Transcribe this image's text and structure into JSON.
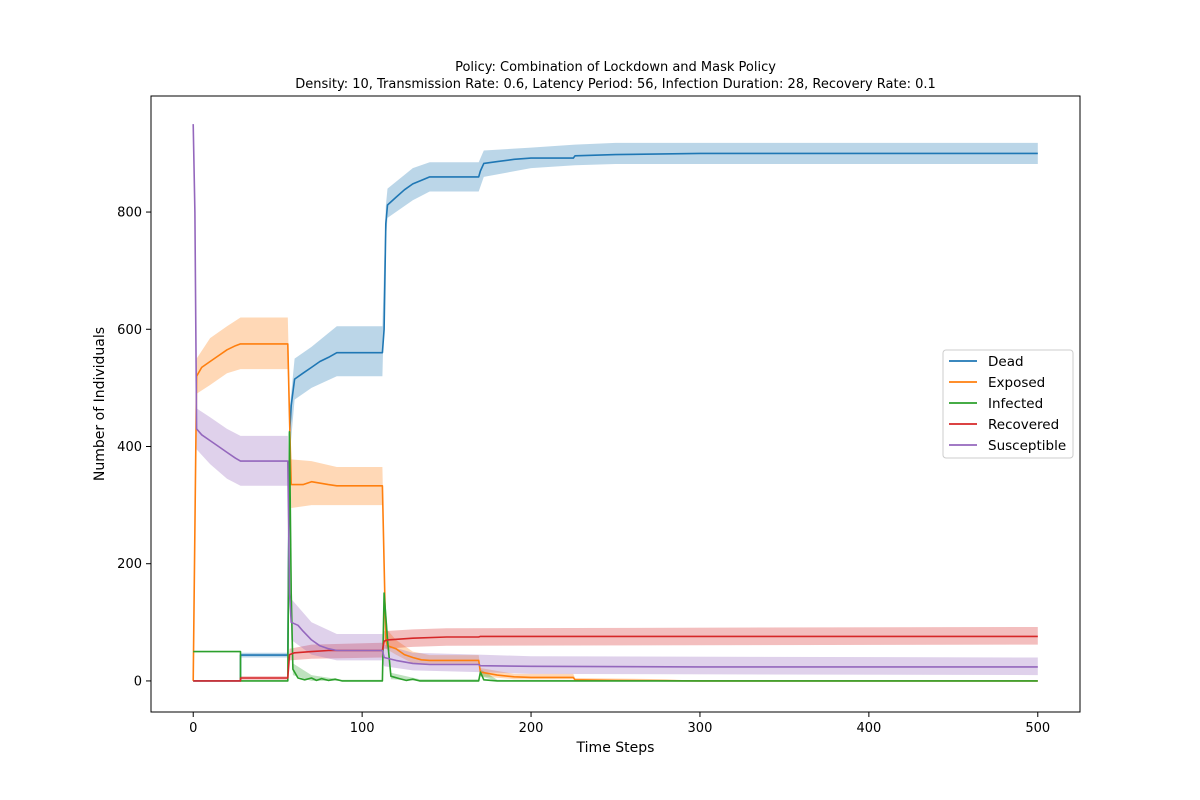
{
  "chart_data": {
    "type": "line",
    "title": "Policy: Combination of Lockdown and Mask Policy",
    "subtitle": "Density: 10, Transmission Rate: 0.6, Latency Period: 56, Infection Duration: 28, Recovery Rate: 0.1",
    "xlabel": "Time Steps",
    "ylabel": "Number of Individuals",
    "xlim": [
      -25,
      525
    ],
    "ylim": [
      -53,
      998
    ],
    "xticks": [
      0,
      100,
      200,
      300,
      400,
      500
    ],
    "yticks": [
      0,
      200,
      400,
      600,
      800
    ],
    "grid": false,
    "legend_position": "center-right",
    "series": [
      {
        "name": "Dead",
        "color": "#1f77b4",
        "points": [
          [
            0,
            0
          ],
          [
            28,
            0
          ],
          [
            28,
            44
          ],
          [
            56,
            44
          ],
          [
            56,
            44
          ],
          [
            57,
            420
          ],
          [
            58,
            470
          ],
          [
            60,
            515
          ],
          [
            65,
            525
          ],
          [
            70,
            535
          ],
          [
            75,
            545
          ],
          [
            80,
            552
          ],
          [
            85,
            560
          ],
          [
            112,
            560
          ],
          [
            113,
            600
          ],
          [
            114,
            780
          ],
          [
            115,
            812
          ],
          [
            120,
            825
          ],
          [
            125,
            838
          ],
          [
            130,
            848
          ],
          [
            135,
            854
          ],
          [
            140,
            860
          ],
          [
            169,
            860
          ],
          [
            170,
            870
          ],
          [
            172,
            883
          ],
          [
            180,
            886
          ],
          [
            190,
            890
          ],
          [
            200,
            892
          ],
          [
            225,
            892
          ],
          [
            226,
            896
          ],
          [
            250,
            898
          ],
          [
            300,
            900
          ],
          [
            500,
            900
          ]
        ],
        "band": [
          [
            0,
            0,
            0
          ],
          [
            28,
            0,
            0
          ],
          [
            28,
            40,
            48
          ],
          [
            56,
            40,
            48
          ],
          [
            57,
            380,
            460
          ],
          [
            60,
            480,
            550
          ],
          [
            70,
            500,
            570
          ],
          [
            85,
            520,
            605
          ],
          [
            112,
            520,
            605
          ],
          [
            114,
            750,
            810
          ],
          [
            115,
            790,
            840
          ],
          [
            130,
            820,
            875
          ],
          [
            140,
            835,
            885
          ],
          [
            169,
            835,
            885
          ],
          [
            172,
            860,
            905
          ],
          [
            200,
            875,
            910
          ],
          [
            226,
            880,
            915
          ],
          [
            250,
            882,
            918
          ],
          [
            500,
            882,
            918
          ]
        ]
      },
      {
        "name": "Exposed",
        "color": "#ff7f0e",
        "points": [
          [
            0,
            0
          ],
          [
            2,
            520
          ],
          [
            5,
            535
          ],
          [
            10,
            545
          ],
          [
            15,
            555
          ],
          [
            20,
            565
          ],
          [
            25,
            572
          ],
          [
            28,
            575
          ],
          [
            56,
            575
          ],
          [
            57,
            450
          ],
          [
            58,
            335
          ],
          [
            65,
            335
          ],
          [
            70,
            340
          ],
          [
            80,
            335
          ],
          [
            85,
            333
          ],
          [
            112,
            333
          ],
          [
            113,
            200
          ],
          [
            114,
            70
          ],
          [
            115,
            60
          ],
          [
            120,
            55
          ],
          [
            125,
            45
          ],
          [
            130,
            40
          ],
          [
            135,
            36
          ],
          [
            140,
            35
          ],
          [
            169,
            35
          ],
          [
            170,
            15
          ],
          [
            180,
            10
          ],
          [
            190,
            7
          ],
          [
            200,
            6
          ],
          [
            225,
            6
          ],
          [
            226,
            2
          ],
          [
            250,
            1
          ],
          [
            300,
            0
          ],
          [
            500,
            0
          ]
        ],
        "band": [
          [
            0,
            0,
            0
          ],
          [
            2,
            490,
            550
          ],
          [
            10,
            505,
            585
          ],
          [
            20,
            525,
            605
          ],
          [
            28,
            532,
            620
          ],
          [
            56,
            532,
            620
          ],
          [
            58,
            295,
            378
          ],
          [
            70,
            300,
            375
          ],
          [
            85,
            300,
            365
          ],
          [
            112,
            300,
            365
          ],
          [
            114,
            55,
            90
          ],
          [
            120,
            45,
            70
          ],
          [
            130,
            30,
            50
          ],
          [
            140,
            28,
            44
          ],
          [
            169,
            28,
            44
          ],
          [
            170,
            8,
            22
          ],
          [
            190,
            3,
            12
          ],
          [
            225,
            3,
            12
          ],
          [
            226,
            0,
            5
          ],
          [
            280,
            0,
            3
          ],
          [
            300,
            0,
            0
          ],
          [
            500,
            0,
            0
          ]
        ]
      },
      {
        "name": "Infected",
        "color": "#2ca02c",
        "points": [
          [
            0,
            50
          ],
          [
            28,
            50
          ],
          [
            28,
            0
          ],
          [
            56,
            0
          ],
          [
            57,
            425
          ],
          [
            58,
            150
          ],
          [
            59,
            20
          ],
          [
            62,
            5
          ],
          [
            66,
            2
          ],
          [
            70,
            5
          ],
          [
            73,
            1
          ],
          [
            76,
            4
          ],
          [
            80,
            1
          ],
          [
            84,
            3
          ],
          [
            88,
            0
          ],
          [
            112,
            0
          ],
          [
            113,
            150
          ],
          [
            115,
            70
          ],
          [
            117,
            8
          ],
          [
            122,
            4
          ],
          [
            126,
            1
          ],
          [
            130,
            3
          ],
          [
            134,
            0
          ],
          [
            169,
            0
          ],
          [
            170,
            15
          ],
          [
            172,
            2
          ],
          [
            180,
            0
          ],
          [
            500,
            0
          ]
        ],
        "band": [
          [
            0,
            50,
            50
          ],
          [
            28,
            50,
            50
          ],
          [
            28,
            0,
            0
          ],
          [
            56,
            0,
            0
          ],
          [
            57,
            380,
            440
          ],
          [
            59,
            10,
            30
          ],
          [
            70,
            0,
            10
          ],
          [
            88,
            0,
            2
          ],
          [
            112,
            0,
            2
          ],
          [
            113,
            130,
            165
          ],
          [
            117,
            3,
            14
          ],
          [
            134,
            0,
            3
          ],
          [
            169,
            0,
            3
          ],
          [
            170,
            8,
            20
          ],
          [
            180,
            0,
            2
          ],
          [
            500,
            0,
            0
          ]
        ]
      },
      {
        "name": "Recovered",
        "color": "#d62728",
        "points": [
          [
            0,
            0
          ],
          [
            28,
            0
          ],
          [
            28,
            5
          ],
          [
            56,
            5
          ],
          [
            57,
            45
          ],
          [
            60,
            48
          ],
          [
            70,
            50
          ],
          [
            80,
            52
          ],
          [
            90,
            52
          ],
          [
            112,
            52
          ],
          [
            113,
            68
          ],
          [
            115,
            70
          ],
          [
            130,
            73
          ],
          [
            150,
            75
          ],
          [
            169,
            75
          ],
          [
            170,
            76
          ],
          [
            200,
            76
          ],
          [
            300,
            76
          ],
          [
            500,
            76
          ]
        ],
        "band": [
          [
            0,
            0,
            0
          ],
          [
            28,
            0,
            0
          ],
          [
            28,
            2,
            8
          ],
          [
            56,
            2,
            8
          ],
          [
            57,
            35,
            55
          ],
          [
            70,
            38,
            62
          ],
          [
            112,
            40,
            65
          ],
          [
            113,
            55,
            85
          ],
          [
            130,
            58,
            88
          ],
          [
            150,
            60,
            90
          ],
          [
            500,
            62,
            92
          ]
        ]
      },
      {
        "name": "Susceptible",
        "color": "#9467bd",
        "points": [
          [
            0,
            950
          ],
          [
            1,
            800
          ],
          [
            2,
            430
          ],
          [
            5,
            420
          ],
          [
            10,
            410
          ],
          [
            15,
            400
          ],
          [
            20,
            390
          ],
          [
            25,
            380
          ],
          [
            28,
            375
          ],
          [
            56,
            375
          ],
          [
            57,
            150
          ],
          [
            58,
            100
          ],
          [
            62,
            95
          ],
          [
            65,
            85
          ],
          [
            70,
            70
          ],
          [
            75,
            60
          ],
          [
            80,
            55
          ],
          [
            85,
            52
          ],
          [
            112,
            52
          ],
          [
            113,
            40
          ],
          [
            120,
            35
          ],
          [
            130,
            30
          ],
          [
            140,
            28
          ],
          [
            169,
            28
          ],
          [
            170,
            26
          ],
          [
            200,
            25
          ],
          [
            300,
            24
          ],
          [
            500,
            24
          ]
        ],
        "band": [
          [
            0,
            950,
            950
          ],
          [
            1,
            780,
            820
          ],
          [
            2,
            395,
            465
          ],
          [
            10,
            370,
            450
          ],
          [
            20,
            345,
            430
          ],
          [
            28,
            333,
            418
          ],
          [
            56,
            333,
            418
          ],
          [
            58,
            70,
            140
          ],
          [
            70,
            45,
            100
          ],
          [
            85,
            35,
            80
          ],
          [
            112,
            35,
            80
          ],
          [
            113,
            25,
            62
          ],
          [
            130,
            18,
            48
          ],
          [
            169,
            15,
            45
          ],
          [
            200,
            12,
            42
          ],
          [
            500,
            10,
            40
          ]
        ]
      }
    ]
  }
}
